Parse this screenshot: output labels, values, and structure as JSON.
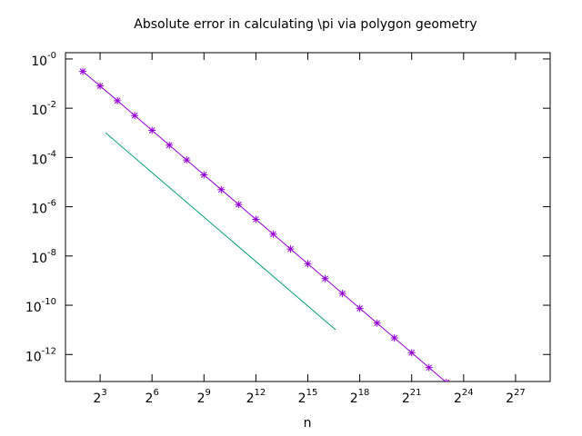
{
  "chart_data": {
    "type": "line",
    "title": "Absolute error in calculating \\pi via polygon geometry",
    "xlabel": "n",
    "xscale": "log",
    "yscale": "log",
    "xlim": [
      2,
      536870912
    ],
    "ylim": [
      8e-14,
      1.8
    ],
    "xticks": [
      {
        "value": 8,
        "label": "2",
        "exponent": "3"
      },
      {
        "value": 64,
        "label": "2",
        "exponent": "6"
      },
      {
        "value": 512,
        "label": "2",
        "exponent": "9"
      },
      {
        "value": 4096,
        "label": "2",
        "exponent": "12"
      },
      {
        "value": 32768,
        "label": "2",
        "exponent": "15"
      },
      {
        "value": 262144,
        "label": "2",
        "exponent": "18"
      },
      {
        "value": 2097152,
        "label": "2",
        "exponent": "21"
      },
      {
        "value": 16777216,
        "label": "2",
        "exponent": "24"
      },
      {
        "value": 134217728,
        "label": "2",
        "exponent": "27"
      }
    ],
    "yticks": [
      {
        "value": 1,
        "label": "10",
        "exponent": "-0"
      },
      {
        "value": 0.01,
        "label": "10",
        "exponent": "-2"
      },
      {
        "value": 0.0001,
        "label": "10",
        "exponent": "-4"
      },
      {
        "value": 1e-06,
        "label": "10",
        "exponent": "-6"
      },
      {
        "value": 1e-08,
        "label": "10",
        "exponent": "-8"
      },
      {
        "value": 1e-10,
        "label": "10",
        "exponent": "-10"
      },
      {
        "value": 1e-12,
        "label": "10",
        "exponent": "-12"
      }
    ],
    "series": [
      {
        "color": "#9400d3",
        "points": true,
        "x": [
          4,
          8,
          16,
          32,
          64,
          128,
          256,
          512,
          1024,
          2048,
          4096,
          8192,
          16384,
          32768,
          65536,
          131072,
          262144,
          524288,
          1048576,
          2097152,
          4194304,
          8388608
        ],
        "values": [
          0.3132,
          0.0801,
          0.02015,
          0.005044,
          0.0012617,
          0.00031543,
          7.8857e-05,
          1.9714e-05,
          4.9286e-06,
          1.2321e-06,
          3.0803e-07,
          7.7008e-08,
          1.9252e-08,
          4.813e-09,
          1.2032e-09,
          3.0081e-10,
          7.5203e-11,
          1.8801e-11,
          4.7002e-12,
          1.1751e-12,
          2.9376e-13,
          7.344e-14
        ]
      },
      {
        "color": "#009e73",
        "points": false,
        "x": [
          10,
          100,
          1000,
          10000,
          100000
        ],
        "values": [
          0.001,
          1e-05,
          1e-07,
          1e-09,
          1e-11
        ]
      }
    ]
  }
}
